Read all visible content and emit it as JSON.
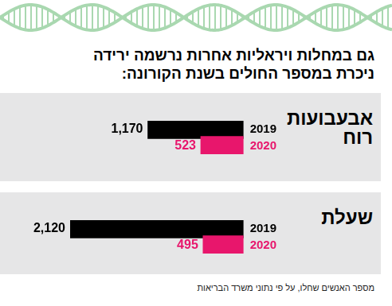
{
  "header": {
    "lines": [
      "גם במחלות ויראליות אחרות נרשמה ירידה",
      "ניכרת במספר החולים בשנת הקורונה:"
    ]
  },
  "source": "מספר האנשים שחלו, על פי נתוני משרד הבריאות",
  "chart_data": [
    {
      "type": "bar",
      "orientation": "horizontal",
      "title": "אבעבועות רוח",
      "categories": [
        "2019",
        "2020"
      ],
      "values": [
        1170,
        523
      ],
      "value_labels": [
        "1,170",
        "523"
      ],
      "colors": [
        "#000000",
        "#e8166c"
      ],
      "xlim": [
        0,
        2120
      ],
      "data_labels": true,
      "tick_labels": "y",
      "grid": false
    },
    {
      "type": "bar",
      "orientation": "horizontal",
      "title": "שעלת",
      "categories": [
        "2019",
        "2020"
      ],
      "values": [
        2120,
        495
      ],
      "value_labels": [
        "2,120",
        "495"
      ],
      "colors": [
        "#000000",
        "#e8166c"
      ],
      "xlim": [
        0,
        2120
      ],
      "data_labels": true,
      "tick_labels": "y",
      "grid": false
    }
  ]
}
